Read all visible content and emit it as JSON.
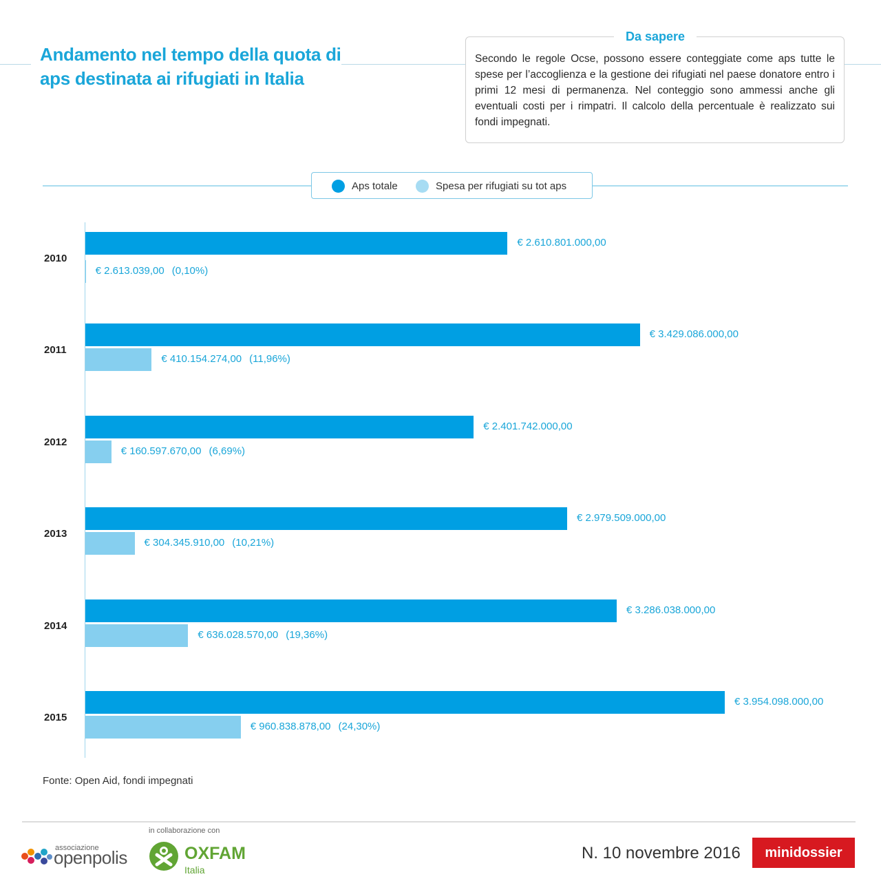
{
  "title": "Andamento nel tempo della quota di aps destinata ai rifugiati in Italia",
  "info": {
    "heading": "Da sapere",
    "text": "Secondo le regole Ocse, possono essere conteggiate come aps tutte le spese per l’accoglienza e la gestione dei rifugiati nel paese donatore entro i primi 12 mesi di permanenza. Nel conteggio sono ammessi anche gli eventuali costi per i rimpatri. Il calcolo della percentuale è realizzato sui fondi impegnati."
  },
  "colors": {
    "aps_totale": "#009fe3",
    "spesa_rifugiati": "#86cfef",
    "accent": "#1aa6d9"
  },
  "chart_data": {
    "type": "bar",
    "orientation": "horizontal",
    "categories": [
      "2010",
      "2011",
      "2012",
      "2013",
      "2014",
      "2015"
    ],
    "series": [
      {
        "name": "Aps totale",
        "values": [
          2610801000,
          3429086000,
          2401742000,
          2979509000,
          3286038000,
          3954098000
        ],
        "labels": [
          "€ 2.610.801.000,00",
          "€ 3.429.086.000,00",
          "€ 2.401.742.000,00",
          "€ 2.979.509.000,00",
          "€ 3.286.038.000,00",
          "€ 3.954.098.000,00"
        ]
      },
      {
        "name": "Spesa per rifugiati su tot aps",
        "values": [
          2613039,
          410154274,
          160597670,
          304345910,
          636028570,
          960838878
        ],
        "labels": [
          "€ 2.613.039,00",
          "€ 410.154.274,00",
          "€ 160.597.670,00",
          "€ 304.345.910,00",
          "€ 636.028.570,00",
          "€ 960.838.878,00"
        ],
        "percent_labels": [
          "(0,10%)",
          "(11,96%)",
          "(6,69%)",
          "(10,21%)",
          "(19,36%)",
          "(24,30%)"
        ]
      }
    ],
    "legend": "top-center"
  },
  "footer": {
    "source": "Fonte: Open Aid, fondi impegnati",
    "collab": "in collaborazione con",
    "assoc": "associazione",
    "openpolis": "openpolis",
    "oxfam": "OXFAM",
    "oxfam_sub": "Italia",
    "issue": "N. 10  novembre 2016",
    "brand": "minidossier"
  }
}
